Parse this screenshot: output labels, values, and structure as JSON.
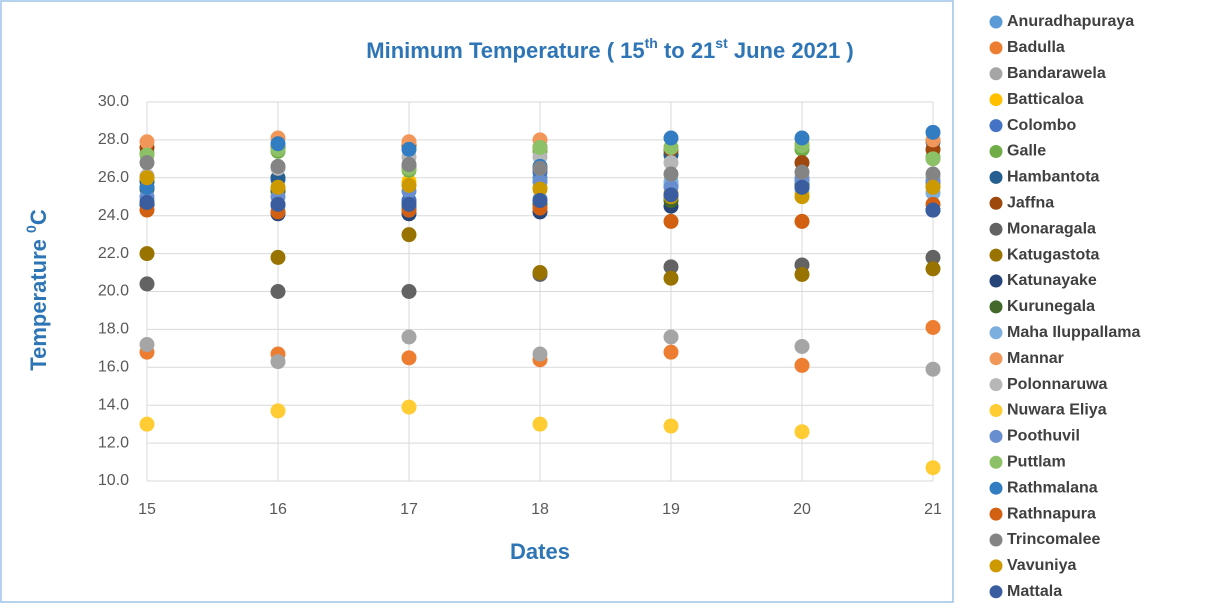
{
  "chart_data": {
    "type": "scatter",
    "title_parts": [
      "Minimum Temperature ( 15",
      "th",
      " to 21",
      "st",
      " June 2021 )"
    ],
    "x_label": "Dates",
    "y_label_parts": [
      "Temperature ",
      "0",
      "C"
    ],
    "x": [
      15,
      16,
      17,
      18,
      19,
      20,
      21
    ],
    "xlim": [
      15,
      21
    ],
    "xticks": [
      15,
      16,
      17,
      18,
      19,
      20,
      21
    ],
    "ylim": [
      10,
      30
    ],
    "yticks": [
      {
        "value": 10,
        "label": "10.0"
      },
      {
        "value": 12,
        "label": "12.0"
      },
      {
        "value": 14,
        "label": "14.0"
      },
      {
        "value": 16,
        "label": "16.0"
      },
      {
        "value": 18,
        "label": "18.0"
      },
      {
        "value": 20,
        "label": "20.0"
      },
      {
        "value": 22,
        "label": "22.0"
      },
      {
        "value": 24,
        "label": "24.0"
      },
      {
        "value": 26,
        "label": "26.0"
      },
      {
        "value": 28,
        "label": "28.0"
      },
      {
        "value": 30,
        "label": "30.0"
      }
    ],
    "grid": true,
    "legend": "right",
    "series": [
      {
        "name": "Anuradhapuraya",
        "color": "#5b9bd5",
        "values": [
          25.5,
          25.3,
          24.8,
          26.0,
          25.6,
          25.8,
          25.6
        ]
      },
      {
        "name": "Badulla",
        "color": "#ed7d31",
        "values": [
          16.8,
          16.7,
          16.5,
          16.4,
          16.8,
          16.1,
          18.1
        ]
      },
      {
        "name": "Bandarawela",
        "color": "#a5a5a5",
        "values": [
          17.2,
          16.3,
          17.6,
          16.7,
          17.6,
          17.1,
          15.9
        ]
      },
      {
        "name": "Batticaloa",
        "color": "#ffc000",
        "values": [
          26.0,
          25.4,
          25.8,
          25.5,
          25.2,
          25.2,
          25.7
        ]
      },
      {
        "name": "Colombo",
        "color": "#4472c4",
        "values": [
          24.6,
          25.9,
          24.8,
          26.3,
          25.0,
          25.6,
          24.3
        ]
      },
      {
        "name": "Galle",
        "color": "#70ad47",
        "values": [
          27.3,
          27.4,
          26.4,
          27.4,
          27.3,
          27.5,
          27.1
        ]
      },
      {
        "name": "Hambantota",
        "color": "#255e91",
        "values": [
          25.8,
          26.0,
          26.6,
          26.5,
          27.2,
          26.0,
          27.9
        ]
      },
      {
        "name": "Jaffna",
        "color": "#9e480e",
        "values": [
          27.6,
          27.6,
          27.7,
          27.6,
          27.5,
          26.8,
          27.5
        ]
      },
      {
        "name": "Monaragala",
        "color": "#636363",
        "values": [
          20.4,
          20.0,
          20.0,
          20.9,
          21.3,
          21.4,
          21.8
        ]
      },
      {
        "name": "Katugastota",
        "color": "#997300",
        "values": [
          22.0,
          21.8,
          23.0,
          21.0,
          20.7,
          20.9,
          21.2
        ]
      },
      {
        "name": "Katunayake",
        "color": "#264478",
        "values": [
          24.6,
          24.1,
          24.1,
          24.2,
          24.5,
          25.5,
          24.3
        ]
      },
      {
        "name": "Kurunegala",
        "color": "#43682b",
        "values": [
          25.4,
          25.3,
          24.4,
          24.6,
          24.8,
          25.6,
          25.8
        ]
      },
      {
        "name": "Maha Iluppallama",
        "color": "#7cafdd",
        "values": [
          24.8,
          24.5,
          24.3,
          24.9,
          25.8,
          25.4,
          25.2
        ]
      },
      {
        "name": "Mannar",
        "color": "#f1975a",
        "values": [
          27.9,
          28.1,
          27.9,
          28.0,
          27.6,
          27.8,
          28.0
        ]
      },
      {
        "name": "Polonnaruwa",
        "color": "#b7b7b7",
        "values": [
          26.1,
          26.5,
          27.1,
          27.1,
          26.8,
          26.0,
          26.0
        ]
      },
      {
        "name": "Nuwara Eliya",
        "color": "#ffcd33",
        "values": [
          13.0,
          13.7,
          13.9,
          13.0,
          12.9,
          12.6,
          10.7
        ]
      },
      {
        "name": "Poothuvil",
        "color": "#698ed0",
        "values": [
          25.0,
          25.0,
          25.3,
          25.8,
          25.5,
          25.9,
          25.8
        ]
      },
      {
        "name": "Puttlam",
        "color": "#8cc168",
        "values": [
          27.2,
          27.5,
          26.5,
          27.6,
          27.6,
          27.7,
          27.0
        ]
      },
      {
        "name": "Rathmalana",
        "color": "#327dc2",
        "values": [
          25.5,
          27.8,
          27.5,
          26.6,
          28.1,
          28.1,
          28.4
        ]
      },
      {
        "name": "Rathnapura",
        "color": "#d26012",
        "values": [
          24.3,
          24.2,
          24.3,
          24.4,
          23.7,
          23.7,
          24.6
        ]
      },
      {
        "name": "Trincomalee",
        "color": "#848484",
        "values": [
          26.8,
          26.6,
          26.7,
          26.5,
          26.2,
          26.3,
          26.2
        ]
      },
      {
        "name": "Vavuniya",
        "color": "#cc9a00",
        "values": [
          26.0,
          25.5,
          25.6,
          25.4,
          25.0,
          25.0,
          25.5
        ]
      },
      {
        "name": "Mattala",
        "color": "#3a5da0",
        "values": [
          24.7,
          24.6,
          24.6,
          24.8,
          25.1,
          25.5,
          24.3
        ]
      }
    ]
  }
}
